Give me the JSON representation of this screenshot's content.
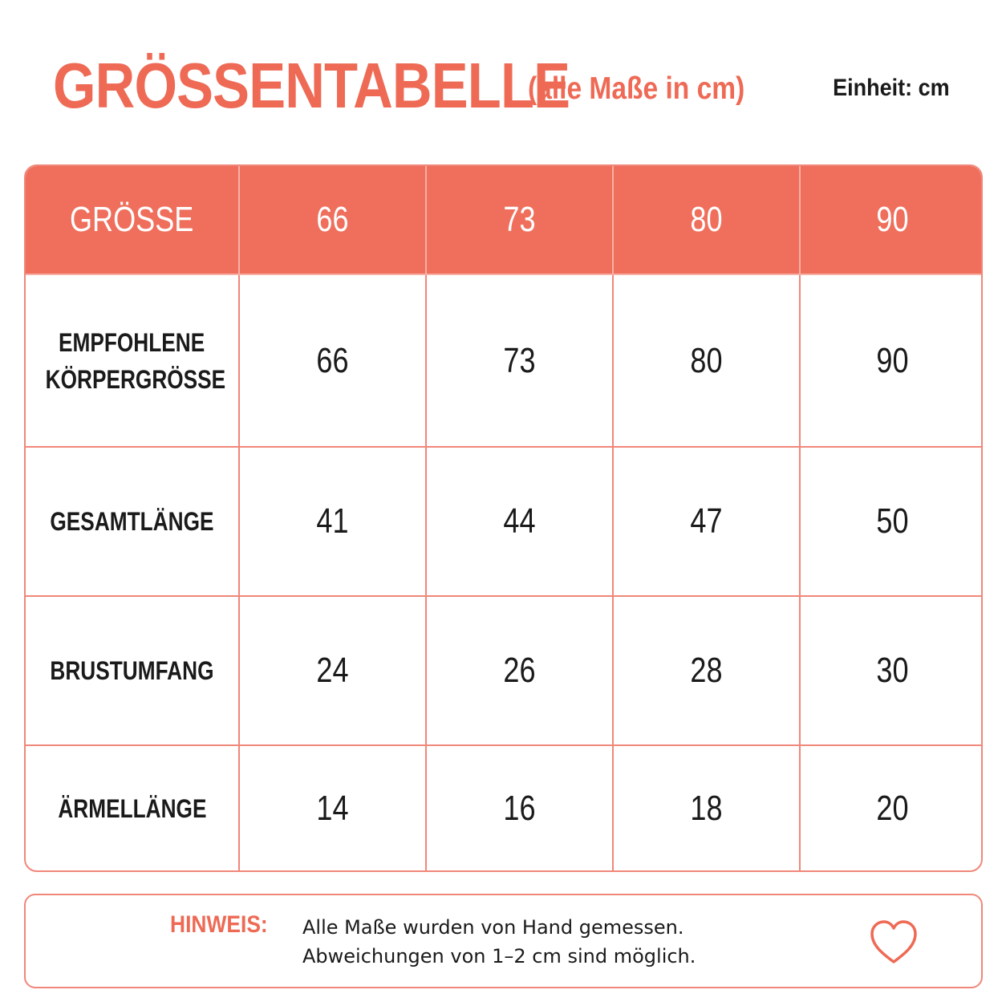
{
  "header": {
    "title": "GRÖSSENTABELLE",
    "subtitle": "(alle Maße in cm)",
    "unit": "Einheit: cm"
  },
  "table": {
    "header": {
      "label": "GRÖSSE",
      "sizes": [
        "66",
        "73",
        "80",
        "90"
      ]
    },
    "rows": [
      {
        "label_line1": "EMPFOHLENE",
        "label_line2": "KÖRPERGRÖSSE",
        "values": [
          "66",
          "73",
          "80",
          "90"
        ]
      },
      {
        "label_line1": "GESAMTLÄNGE",
        "label_line2": "",
        "values": [
          "41",
          "44",
          "47",
          "50"
        ]
      },
      {
        "label_line1": "BRUSTUMFANG",
        "label_line2": "",
        "values": [
          "24",
          "26",
          "28",
          "30"
        ]
      },
      {
        "label_line1": "ÄRMELLÄNGE",
        "label_line2": "",
        "values": [
          "14",
          "16",
          "18",
          "20"
        ]
      }
    ]
  },
  "note": {
    "label": "HINWEIS:",
    "line1": "Alle Maße wurden von Hand gemessen.",
    "line2": "Abweichungen von 1–2 cm sind möglich.",
    "icon": "heart-icon"
  },
  "colors": {
    "accent": "#ee6a55",
    "border": "#f0877a",
    "text": "#1a1a1a"
  }
}
